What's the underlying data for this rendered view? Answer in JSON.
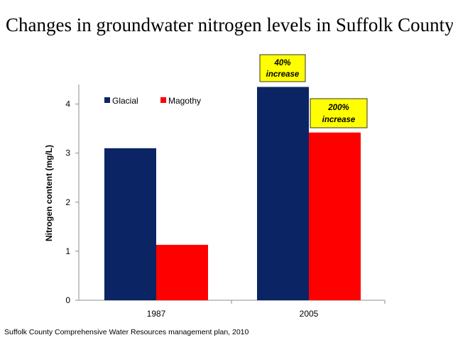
{
  "title": "Changes in groundwater nitrogen levels in Suffolk County",
  "source": "Suffolk County Comprehensive Water Resources management plan, 2010",
  "chart_data": {
    "type": "bar",
    "categories": [
      "1987",
      "2005"
    ],
    "series": [
      {
        "name": "Glacial",
        "color": "#0b2463",
        "values": [
          3.1,
          4.35
        ]
      },
      {
        "name": "Magothy",
        "color": "#ff0000",
        "values": [
          1.13,
          3.42
        ]
      }
    ],
    "ylabel": "Nitrogen content (mg/L)",
    "ylim": [
      0,
      4.4
    ],
    "yticks": [
      "0",
      "1",
      "2",
      "3",
      "4"
    ],
    "legend_position": "top-left",
    "annotations": [
      {
        "line1": "40%",
        "line2": "increase",
        "category": "2005",
        "series": "Glacial"
      },
      {
        "line1": "200%",
        "line2": "increase",
        "category": "2005",
        "series": "Magothy"
      }
    ],
    "annotation_color": "#ffff00"
  }
}
